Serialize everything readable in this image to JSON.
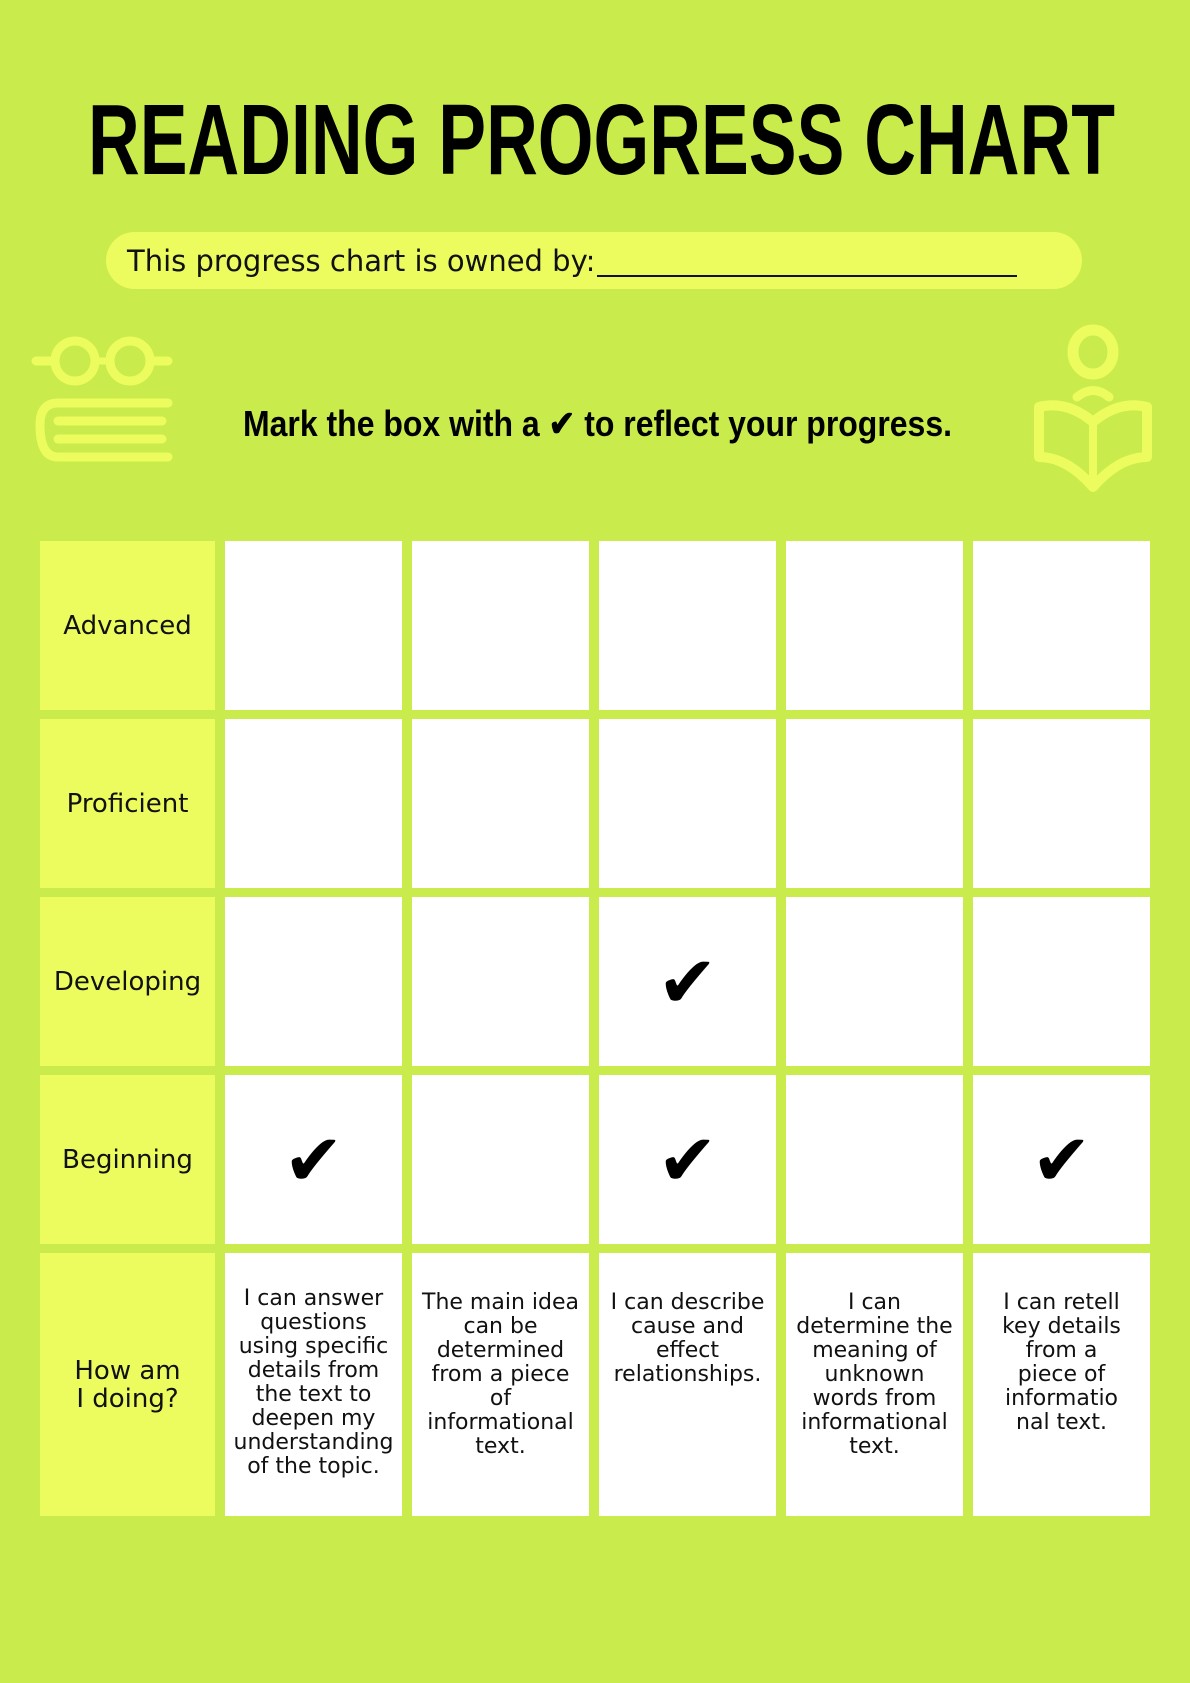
{
  "header": {
    "title": "READING PROGRESS CHART",
    "owner_label": "This progress chart is owned by:",
    "subtitle": "Mark the box with a ✔ to reflect your progress."
  },
  "icons": {
    "left": "glasses-book-icon",
    "right": "reader-open-book-icon"
  },
  "colors": {
    "background": "#c9eb4b",
    "label_fill": "#ecfc5e",
    "cell_fill": "#ffffff"
  },
  "rows": [
    {
      "label": "Advanced",
      "marks": [
        "",
        "",
        "",
        "",
        ""
      ]
    },
    {
      "label": "Proficient",
      "marks": [
        "",
        "",
        "",
        "",
        ""
      ]
    },
    {
      "label": "Developing",
      "marks": [
        "",
        "",
        "✔",
        "",
        ""
      ]
    },
    {
      "label": "Beginning",
      "marks": [
        "✔",
        "",
        "✔",
        "",
        "✔"
      ]
    }
  ],
  "footer_row": {
    "label": "How am I doing?",
    "goals": [
      "I can answer questions using specific details from the text to deepen my understanding of the topic.",
      "The main idea can be determined from a piece of informational text.",
      "I can describe cause and effect relationships.",
      "I can determine the meaning of unknown words from informational text.",
      "I can retell key details from a piece of informatio nal text."
    ]
  }
}
